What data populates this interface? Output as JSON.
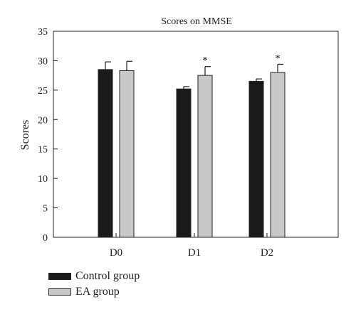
{
  "chart_data": {
    "type": "bar",
    "title": "Scores on MMSE",
    "xlabel": "",
    "ylabel": "Scores",
    "categories": [
      "D0",
      "D1",
      "D2"
    ],
    "ylim": [
      0,
      35
    ],
    "yticks": [
      0,
      5,
      10,
      15,
      20,
      25,
      30,
      35
    ],
    "grid": false,
    "legend_position": "bottom-left",
    "series": [
      {
        "name": "Control group",
        "color": "#1a1a1a",
        "values": [
          28.5,
          25.2,
          26.5
        ],
        "errors": [
          1.3,
          0.4,
          0.4
        ],
        "annotations": [
          "",
          "",
          ""
        ]
      },
      {
        "name": "EA group",
        "color": "#c8c8c8",
        "values": [
          28.3,
          27.5,
          28.0
        ],
        "errors": [
          1.6,
          1.5,
          1.4
        ],
        "annotations": [
          "",
          "*",
          "*"
        ]
      }
    ]
  }
}
